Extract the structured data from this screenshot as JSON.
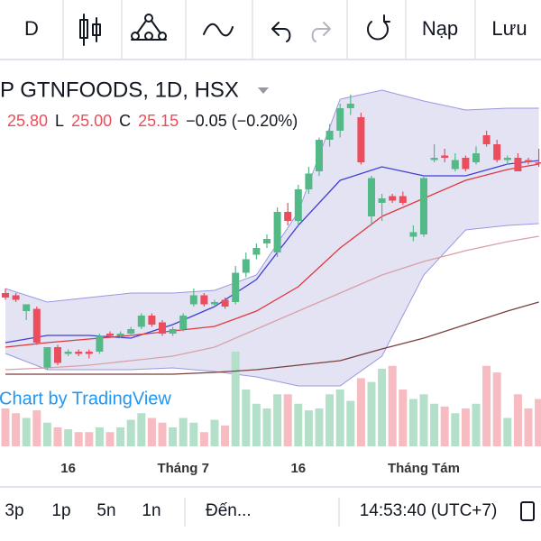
{
  "toolbar": {
    "interval": "D",
    "load": "Nạp",
    "save": "Lưu"
  },
  "chart_data": {
    "type": "candlestick",
    "title": "P GTNFOODS, 1D, HSX",
    "legend": [
      "25.80",
      "L",
      "25.00",
      "C",
      "25.15",
      "−0.05 (−0.20%)"
    ],
    "watermark": "Chart by TradingView",
    "categories": [
      null,
      null,
      null,
      null,
      null,
      null,
      "16",
      null,
      null,
      null,
      null,
      null,
      null,
      null,
      null,
      null,
      null,
      "Tháng 7",
      null,
      null,
      null,
      null,
      null,
      null,
      null,
      null,
      null,
      null,
      "16",
      null,
      null,
      null,
      null,
      null,
      null,
      null,
      null,
      null,
      null,
      null,
      "Tháng Tám",
      null,
      null,
      null,
      null,
      null,
      null,
      null,
      null,
      null,
      null,
      null
    ],
    "open": [
      19.4,
      19.3,
      18.6,
      18.7,
      16.1,
      17.0,
      16.7,
      16.8,
      16.8,
      16.8,
      17.6,
      17.5,
      17.6,
      17.9,
      18.4,
      18.1,
      17.6,
      17.8,
      18.9,
      19.3,
      18.9,
      19.1,
      19.0,
      20.3,
      21.1,
      21.6,
      21.2,
      23.0,
      22.6,
      24.0,
      24.8,
      26.2,
      26.6,
      27.6,
      27.2,
      22.8,
      23.4,
      23.7,
      23.7,
      21.9,
      22.0,
      25.3,
      25.5,
      24.9,
      25.4,
      25.2,
      26.4,
      26.0,
      25.3,
      25.4,
      25.3,
      25.2
    ],
    "high": [
      19.6,
      19.4,
      18.9,
      18.8,
      17.0,
      17.1,
      16.9,
      16.9,
      16.9,
      17.6,
      17.7,
      17.7,
      17.9,
      18.5,
      18.5,
      18.2,
      17.9,
      18.5,
      19.6,
      19.4,
      19.1,
      19.2,
      20.6,
      21.2,
      21.6,
      22.0,
      23.2,
      23.4,
      24.2,
      25.0,
      26.3,
      26.9,
      27.8,
      28.2,
      27.4,
      24.6,
      23.8,
      23.8,
      23.9,
      22.4,
      24.6,
      26.0,
      25.8,
      25.6,
      25.5,
      25.9,
      26.6,
      26.2,
      25.5,
      25.6,
      25.4,
      25.8
    ],
    "low": [
      19.1,
      19.0,
      18.2,
      17.1,
      16.0,
      16.2,
      16.6,
      16.6,
      16.5,
      16.7,
      17.4,
      17.4,
      17.5,
      17.8,
      17.9,
      17.5,
      17.5,
      17.7,
      18.8,
      18.8,
      18.8,
      18.7,
      18.9,
      20.1,
      20.9,
      21.4,
      21.0,
      22.4,
      22.4,
      23.8,
      24.6,
      25.9,
      26.3,
      27.3,
      25.1,
      22.4,
      22.6,
      23.4,
      23.3,
      21.7,
      21.9,
      25.2,
      25.2,
      24.8,
      24.8,
      25.1,
      25.9,
      25.2,
      25.1,
      24.8,
      25.1,
      25.0
    ],
    "close": [
      19.2,
      19.1,
      18.9,
      17.2,
      17.0,
      16.3,
      16.8,
      16.7,
      16.7,
      17.5,
      17.5,
      17.6,
      17.8,
      18.4,
      18.0,
      17.6,
      17.8,
      18.4,
      19.3,
      18.9,
      19.0,
      18.8,
      20.3,
      20.9,
      21.4,
      21.8,
      23.0,
      22.6,
      24.0,
      24.7,
      26.2,
      26.6,
      27.6,
      27.8,
      25.2,
      24.5,
      23.6,
      23.5,
      23.4,
      22.1,
      24.5,
      25.4,
      25.4,
      25.3,
      24.9,
      25.6,
      26.0,
      25.3,
      25.4,
      24.8,
      25.2,
      25.15
    ],
    "up_color": "#53b987",
    "down_color": "#eb4d5c",
    "ylim": [
      15,
      30
    ],
    "volume": [
      40,
      35,
      30,
      38,
      25,
      20,
      18,
      15,
      15,
      20,
      15,
      20,
      28,
      35,
      30,
      25,
      20,
      30,
      25,
      15,
      28,
      22,
      100,
      60,
      45,
      40,
      55,
      55,
      45,
      38,
      40,
      55,
      60,
      48,
      72,
      68,
      82,
      85,
      60,
      50,
      55,
      45,
      42,
      35,
      40,
      45,
      85,
      78,
      30,
      55,
      40,
      50
    ],
    "volume_ylim": [
      0,
      100
    ],
    "volume_up_color": "#b4e0c9",
    "volume_down_color": "#f6bcc1",
    "indicator_x": [
      0,
      4,
      8,
      12,
      16,
      20,
      24,
      28,
      32,
      36,
      40,
      44,
      48,
      51
    ],
    "band_upper": [
      19.6,
      19.0,
      19.2,
      19.4,
      19.4,
      19.52,
      20.2,
      23.0,
      28.0,
      28.4,
      27.92,
      27.52,
      27.6,
      27.6
    ],
    "band_lower": [
      16.72,
      16.0,
      16.0,
      16.0,
      16.08,
      15.92,
      15.68,
      15.28,
      15.28,
      16.6,
      20.2,
      22.2,
      22.4,
      22.48
    ],
    "band_fill": "#e4e3f3",
    "band_color": "#9a98e0",
    "lines": [
      {
        "color": "#3f3fd6",
        "values": [
          17.2,
          17.52,
          17.52,
          17.4,
          18.0,
          18.8,
          20.0,
          22.4,
          24.4,
          25.0,
          24.6,
          24.6,
          25.12,
          25.28
        ]
      },
      {
        "color": "#e0383e",
        "values": [
          17.0,
          17.2,
          17.36,
          17.52,
          17.72,
          17.92,
          18.6,
          19.68,
          21.4,
          22.8,
          23.6,
          24.4,
          24.88,
          25.12
        ]
      },
      {
        "color": "#d9a0a8",
        "values": [
          16.0,
          16.08,
          16.2,
          16.4,
          16.6,
          17.0,
          17.8,
          18.6,
          19.4,
          20.2,
          20.8,
          21.28,
          21.68,
          21.92
        ]
      },
      {
        "color": "#7b3f3f",
        "values": [
          15.8,
          15.8,
          15.8,
          15.8,
          15.8,
          15.88,
          16.0,
          16.2,
          16.4,
          16.92,
          17.4,
          18.0,
          18.6,
          19.0
        ]
      }
    ]
  },
  "footer": {
    "ranges": [
      "3p",
      "1p",
      "5n",
      "1n"
    ],
    "goto": "Đến...",
    "time": "14:53:40 (UTC+7)"
  }
}
